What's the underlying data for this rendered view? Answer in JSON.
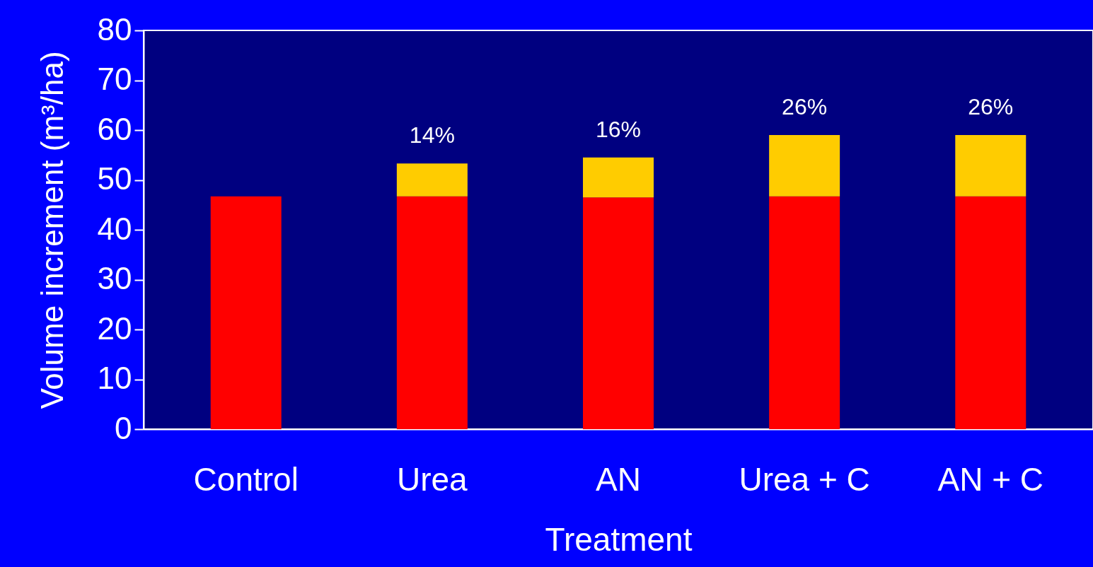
{
  "chart_data": {
    "type": "bar",
    "xlabel": "Treatment",
    "ylabel": "Volume increment (m³/ha)",
    "categories": [
      "Control",
      "Urea",
      "AN",
      "Urea + C",
      "AN + C"
    ],
    "series": [
      {
        "color": "#ff0000",
        "values": [
          46.7,
          46.7,
          46.5,
          46.7,
          46.7
        ]
      },
      {
        "color": "#ffcc00",
        "values": [
          null,
          6.6,
          8.0,
          12.3,
          12.3
        ]
      }
    ],
    "stacked": true,
    "annotations": [
      {
        "text": "14%",
        "x": "Urea",
        "y": 53.3
      },
      {
        "text": "16%",
        "x": "AN",
        "y": 54.5
      },
      {
        "text": "26%",
        "x": "Urea + C",
        "y": 59.0
      },
      {
        "text": "26%",
        "x": "AN + C",
        "y": 59.0
      }
    ],
    "ylim": [
      0,
      80
    ],
    "yticks": [
      0,
      10,
      20,
      30,
      40,
      50,
      60,
      70,
      80
    ],
    "grid": false,
    "legend": false
  }
}
